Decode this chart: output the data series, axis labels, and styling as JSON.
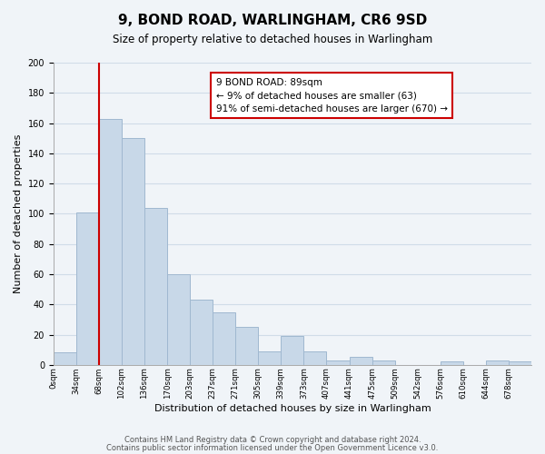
{
  "title": "9, BOND ROAD, WARLINGHAM, CR6 9SD",
  "subtitle": "Size of property relative to detached houses in Warlingham",
  "xlabel": "Distribution of detached houses by size in Warlingham",
  "ylabel": "Number of detached properties",
  "bar_labels": [
    "0sqm",
    "34sqm",
    "68sqm",
    "102sqm",
    "136sqm",
    "170sqm",
    "203sqm",
    "237sqm",
    "271sqm",
    "305sqm",
    "339sqm",
    "373sqm",
    "407sqm",
    "441sqm",
    "475sqm",
    "509sqm",
    "542sqm",
    "576sqm",
    "610sqm",
    "644sqm",
    "678sqm"
  ],
  "bar_values": [
    8,
    101,
    163,
    150,
    104,
    60,
    43,
    35,
    25,
    9,
    19,
    9,
    3,
    5,
    3,
    0,
    0,
    2,
    0,
    3,
    2
  ],
  "bar_color": "#c8d8e8",
  "bar_edge_color": "#a0b8d0",
  "vline_x": 2.0,
  "vline_color": "#cc0000",
  "annotation_text": "9 BOND ROAD: 89sqm\n← 9% of detached houses are smaller (63)\n91% of semi-detached houses are larger (670) →",
  "annotation_box_color": "#ffffff",
  "annotation_box_edge": "#cc0000",
  "ylim": [
    0,
    200
  ],
  "yticks": [
    0,
    20,
    40,
    60,
    80,
    100,
    120,
    140,
    160,
    180,
    200
  ],
  "footer1": "Contains HM Land Registry data © Crown copyright and database right 2024.",
  "footer2": "Contains public sector information licensed under the Open Government Licence v3.0.",
  "grid_color": "#d0dce8",
  "background_color": "#f0f4f8"
}
